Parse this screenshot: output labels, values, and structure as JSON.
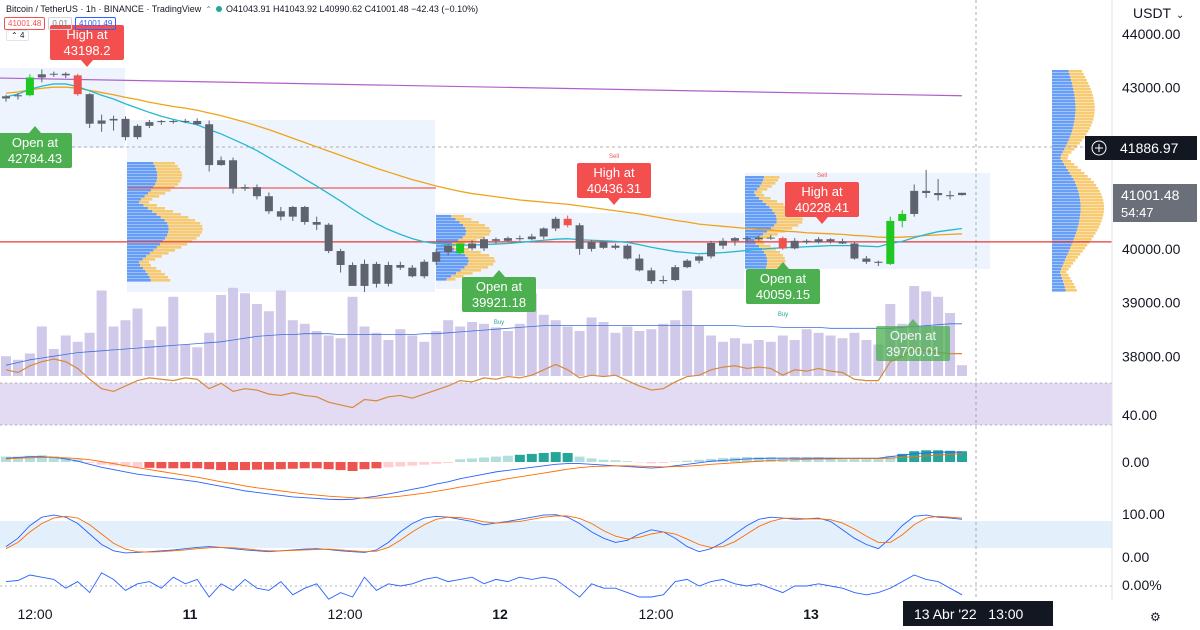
{
  "header": {
    "symbol": "Bitcoin / TetherUS · 1h · BINANCE · TradingView",
    "bid_badge": "41001.48",
    "spread_badge": "0.01",
    "ask_badge": "41001.49",
    "ohlc": "O41043.91 H41043.92 L40990.62 C41001.48 −42.43 (−0.10%)",
    "indicator_count": "4"
  },
  "price_axis": {
    "currency": "USDT",
    "current_price": "41001.48",
    "countdown": "54:47",
    "crosshair_price": "41886.97"
  },
  "time_axis": {
    "crosshair_label": "13 Abr '22   13:00"
  },
  "colors": {
    "up": "#1fc722",
    "down": "#ef5350",
    "neutral": "#787b86",
    "ema_fast": "#26b8d0",
    "ema_slow": "#f0a31a",
    "long_ma": "#b05fc9",
    "volume": "#c9bfe6",
    "rsi_line": "#d8893a"
  },
  "chart_data": {
    "type": "candlestick",
    "interval": "1h",
    "ylim": [
      37600,
      44400
    ],
    "y_ticks": [
      "44000.00",
      "43000.00",
      "42000.00",
      "41000.00",
      "40000.00",
      "39000.00",
      "38000.00"
    ],
    "x_ticks": [
      "12:00",
      "11",
      "12:00",
      "12",
      "12:00",
      "13"
    ],
    "candles": [
      [
        42800,
        42870,
        42740,
        42840
      ],
      [
        42840,
        42900,
        42780,
        42860
      ],
      [
        42860,
        43250,
        42840,
        43190
      ],
      [
        43190,
        43340,
        43100,
        43250
      ],
      [
        43250,
        43300,
        43200,
        43260
      ],
      [
        43260,
        43290,
        43180,
        43230
      ],
      [
        43230,
        43260,
        42850,
        42880
      ],
      [
        42880,
        42900,
        42250,
        42330
      ],
      [
        42330,
        42500,
        42180,
        42390
      ],
      [
        42390,
        42480,
        42200,
        42420
      ],
      [
        42420,
        42470,
        42020,
        42080
      ],
      [
        42080,
        42320,
        42040,
        42290
      ],
      [
        42290,
        42400,
        42250,
        42360
      ],
      [
        42360,
        42400,
        42310,
        42380
      ],
      [
        42380,
        42400,
        42330,
        42370
      ],
      [
        42370,
        42420,
        42340,
        42380
      ],
      [
        42380,
        42430,
        42300,
        42320
      ],
      [
        42320,
        42390,
        41440,
        41560
      ],
      [
        41560,
        41720,
        41550,
        41650
      ],
      [
        41650,
        41700,
        41030,
        41120
      ],
      [
        41120,
        41200,
        41080,
        41150
      ],
      [
        41150,
        41200,
        40920,
        40980
      ],
      [
        40980,
        41050,
        40650,
        40700
      ],
      [
        40700,
        40780,
        40530,
        40600
      ],
      [
        40600,
        40800,
        40520,
        40780
      ],
      [
        40780,
        40800,
        40450,
        40500
      ],
      [
        40500,
        40600,
        40350,
        40450
      ],
      [
        40450,
        40480,
        39920,
        39960
      ],
      [
        39960,
        40000,
        39560,
        39700
      ],
      [
        39700,
        39750,
        39320,
        39310
      ],
      [
        39310,
        39800,
        39200,
        39720
      ],
      [
        39720,
        39760,
        39280,
        39350
      ],
      [
        39350,
        39760,
        39300,
        39700
      ],
      [
        39700,
        39760,
        39610,
        39650
      ],
      [
        39650,
        39700,
        39470,
        39490
      ],
      [
        39490,
        39800,
        39450,
        39760
      ],
      [
        39760,
        40000,
        39700,
        39940
      ],
      [
        39940,
        40090,
        39880,
        40060
      ],
      [
        39920,
        40110,
        39900,
        40100
      ],
      [
        40100,
        40160,
        39970,
        40010
      ],
      [
        40010,
        40220,
        39960,
        40180
      ],
      [
        40180,
        40210,
        40100,
        40150
      ],
      [
        40150,
        40230,
        40120,
        40200
      ],
      [
        40200,
        40250,
        40150,
        40180
      ],
      [
        40180,
        40280,
        40160,
        40230
      ],
      [
        40230,
        40400,
        40180,
        40380
      ],
      [
        40380,
        40600,
        40330,
        40560
      ],
      [
        40560,
        40620,
        40400,
        40440
      ],
      [
        40440,
        40480,
        39890,
        40000
      ],
      [
        40000,
        40160,
        39950,
        40120
      ],
      [
        40120,
        40140,
        40000,
        40020
      ],
      [
        40020,
        40100,
        39990,
        40060
      ],
      [
        40060,
        40090,
        39800,
        39820
      ],
      [
        39820,
        39900,
        39580,
        39600
      ],
      [
        39600,
        39650,
        39350,
        39400
      ],
      [
        39400,
        39500,
        39350,
        39420
      ],
      [
        39420,
        39700,
        39400,
        39660
      ],
      [
        39660,
        39810,
        39640,
        39780
      ],
      [
        39780,
        39880,
        39730,
        39860
      ],
      [
        39860,
        40150,
        39820,
        40110
      ],
      [
        40060,
        40200,
        40000,
        40150
      ],
      [
        40150,
        40220,
        40060,
        40200
      ],
      [
        40200,
        40240,
        40120,
        40180
      ],
      [
        40180,
        40250,
        40150,
        40210
      ],
      [
        40210,
        40260,
        40170,
        40200
      ],
      [
        40200,
        40230,
        39980,
        40010
      ],
      [
        40010,
        40200,
        39990,
        40150
      ],
      [
        40150,
        40180,
        40090,
        40120
      ],
      [
        40120,
        40220,
        40100,
        40180
      ],
      [
        40180,
        40200,
        40100,
        40140
      ],
      [
        40140,
        40190,
        40090,
        40100
      ],
      [
        40100,
        40120,
        39800,
        39820
      ],
      [
        39820,
        39870,
        39720,
        39760
      ],
      [
        39760,
        39780,
        39680,
        39740
      ],
      [
        39720,
        40600,
        39700,
        40520
      ],
      [
        40520,
        40720,
        40400,
        40650
      ],
      [
        40650,
        41200,
        40600,
        41080
      ],
      [
        41080,
        41470,
        40950,
        41040
      ],
      [
        41040,
        41300,
        40900,
        41000
      ],
      [
        41000,
        41080,
        40920,
        40980
      ],
      [
        41043.91,
        41043.92,
        40990.62,
        41001.48
      ]
    ],
    "volume": [
      22,
      18,
      25,
      55,
      30,
      45,
      38,
      48,
      95,
      55,
      62,
      75,
      40,
      55,
      88,
      35,
      32,
      48,
      90,
      98,
      92,
      80,
      72,
      95,
      62,
      58,
      50,
      45,
      42,
      88,
      55,
      48,
      40,
      52,
      45,
      38,
      50,
      62,
      55,
      60,
      58,
      54,
      50,
      58,
      92,
      68,
      62,
      55,
      50,
      65,
      60,
      48,
      55,
      50,
      52,
      58,
      62,
      95,
      56,
      45,
      38,
      42,
      36,
      40,
      38,
      45,
      40,
      52,
      48,
      45,
      42,
      48,
      40,
      35,
      80,
      58,
      100,
      94,
      88,
      70,
      12
    ],
    "ema_fast": [
      42830,
      42880,
      42970,
      43030,
      43070,
      43070,
      43020,
      42940,
      42860,
      42790,
      42700,
      42620,
      42540,
      42470,
      42410,
      42360,
      42310,
      42220,
      42140,
      42040,
      41940,
      41830,
      41700,
      41570,
      41440,
      41300,
      41170,
      41030,
      40890,
      40740,
      40600,
      40470,
      40360,
      40270,
      40190,
      40130,
      40100,
      40080,
      40070,
      40070,
      40080,
      40090,
      40100,
      40120,
      40140,
      40160,
      40180,
      40190,
      40170,
      40160,
      40150,
      40140,
      40120,
      40080,
      40030,
      39990,
      39950,
      39930,
      39910,
      39920,
      39930,
      39950,
      39970,
      39990,
      40010,
      40020,
      40030,
      40040,
      40050,
      40060,
      40060,
      40060,
      40050,
      40040,
      40100,
      40140,
      40210,
      40270,
      40320,
      40350,
      40380
    ],
    "ema_slow": [
      42900,
      42920,
      42960,
      42990,
      43010,
      43010,
      42990,
      42950,
      42910,
      42870,
      42820,
      42780,
      42730,
      42690,
      42650,
      42620,
      42580,
      42530,
      42480,
      42420,
      42360,
      42290,
      42220,
      42140,
      42060,
      41980,
      41900,
      41820,
      41740,
      41660,
      41580,
      41500,
      41430,
      41360,
      41290,
      41230,
      41170,
      41120,
      41070,
      41030,
      41000,
      40970,
      40940,
      40910,
      40890,
      40870,
      40850,
      40830,
      40800,
      40770,
      40740,
      40710,
      40680,
      40650,
      40610,
      40570,
      40530,
      40500,
      40460,
      40440,
      40420,
      40400,
      40380,
      40360,
      40350,
      40330,
      40320,
      40300,
      40290,
      40280,
      40270,
      40250,
      40240,
      40220,
      40210,
      40220,
      40230,
      40250,
      40260,
      40270,
      40280
    ],
    "long_ma": [
      43180,
      42850
    ],
    "volume_ma": [
      12,
      15,
      18,
      20,
      22,
      24,
      26,
      27,
      28,
      29,
      30,
      31,
      32,
      33,
      34,
      35,
      36,
      37,
      38,
      40,
      42,
      44,
      45,
      46,
      46,
      47,
      47,
      47,
      46,
      46,
      46,
      46,
      46,
      46,
      46,
      47,
      47,
      48,
      49,
      50,
      51,
      52,
      53,
      54,
      55,
      56,
      56,
      56,
      56,
      56,
      56,
      56,
      56,
      56,
      56,
      56,
      56,
      56,
      56,
      56,
      56,
      56,
      55,
      55,
      55,
      54,
      54,
      54,
      54,
      53,
      53,
      53,
      53,
      53,
      53,
      54,
      55,
      56,
      57,
      58,
      58
    ],
    "horizontal_levels": [
      40130
    ],
    "annotations": [
      {
        "label": "High at 43198.2",
        "color": "red",
        "candle": 2
      },
      {
        "label": "Open at 42784.43",
        "color": "green",
        "candle": 0
      },
      {
        "label": "Open at 39921.18",
        "color": "green",
        "candle": 38,
        "sub": "Buy"
      },
      {
        "label": "High at 40436.31",
        "color": "red",
        "candle": 46,
        "sub": "Sell"
      },
      {
        "label": "High at 40228.41",
        "color": "red",
        "candle": 63,
        "sub": "Sell"
      },
      {
        "label": "Open at 40059.15",
        "color": "green",
        "candle": 60,
        "sub": "Buy"
      },
      {
        "label": "Open at 39700.01",
        "color": "green",
        "candle": 74
      }
    ],
    "rsi": {
      "axis_label": "40.00",
      "values": [
        52,
        50,
        55,
        58,
        60,
        58,
        53,
        45,
        38,
        36,
        40,
        44,
        46,
        45,
        44,
        46,
        45,
        38,
        42,
        36,
        38,
        37,
        34,
        33,
        35,
        33,
        32,
        28,
        26,
        24,
        30,
        29,
        32,
        33,
        31,
        34,
        37,
        40,
        44,
        43,
        46,
        45,
        47,
        46,
        48,
        52,
        56,
        52,
        46,
        48,
        47,
        48,
        44,
        40,
        37,
        38,
        43,
        47,
        48,
        52,
        54,
        55,
        53,
        54,
        53,
        48,
        52,
        51,
        53,
        51,
        50,
        45,
        44,
        44,
        58,
        62,
        68,
        66,
        65,
        64,
        64
      ]
    },
    "macd": {
      "axis_label": "0.00",
      "histogram": [
        12,
        12,
        14,
        15,
        13,
        10,
        6,
        -2,
        -6,
        -8,
        -10,
        -12,
        -13,
        -14,
        -14,
        -14,
        -14,
        -16,
        -18,
        -18,
        -18,
        -17,
        -17,
        -16,
        -15,
        -14,
        -14,
        -16,
        -18,
        -20,
        -16,
        -14,
        -12,
        -10,
        -8,
        -6,
        -4,
        -2,
        6,
        8,
        10,
        12,
        14,
        16,
        18,
        20,
        22,
        20,
        12,
        8,
        5,
        4,
        2,
        -1,
        -3,
        -2,
        1,
        3,
        5,
        7,
        9,
        10,
        11,
        11,
        11,
        10,
        11,
        11,
        11,
        10,
        9,
        8,
        7,
        7,
        14,
        18,
        24,
        26,
        26,
        25,
        24
      ],
      "macd_line": [
        10,
        12,
        14,
        14,
        12,
        8,
        2,
        -6,
        -14,
        -20,
        -26,
        -32,
        -36,
        -40,
        -44,
        -48,
        -52,
        -58,
        -64,
        -70,
        -76,
        -80,
        -84,
        -88,
        -92,
        -94,
        -96,
        -98,
        -99,
        -98,
        -94,
        -90,
        -84,
        -78,
        -72,
        -66,
        -58,
        -52,
        -44,
        -38,
        -32,
        -26,
        -22,
        -18,
        -14,
        -10,
        -6,
        -4,
        -4,
        -6,
        -8,
        -10,
        -12,
        -14,
        -16,
        -14,
        -10,
        -6,
        -2,
        2,
        4,
        6,
        8,
        9,
        10,
        10,
        10,
        10,
        10,
        10,
        10,
        10,
        10,
        10,
        14,
        18,
        22,
        24,
        26,
        26,
        26
      ],
      "signal_line": [
        8,
        10,
        11,
        12,
        12,
        11,
        9,
        6,
        1,
        -4,
        -10,
        -15,
        -20,
        -25,
        -30,
        -35,
        -40,
        -46,
        -52,
        -57,
        -63,
        -68,
        -72,
        -76,
        -80,
        -84,
        -87,
        -90,
        -92,
        -94,
        -95,
        -95,
        -93,
        -90,
        -86,
        -82,
        -77,
        -72,
        -66,
        -61,
        -55,
        -50,
        -44,
        -39,
        -34,
        -29,
        -24,
        -19,
        -15,
        -12,
        -11,
        -10,
        -10,
        -11,
        -12,
        -13,
        -12,
        -11,
        -9,
        -6,
        -4,
        -2,
        0,
        2,
        4,
        5,
        6,
        7,
        8,
        8,
        9,
        9,
        9,
        9,
        10,
        12,
        14,
        16,
        18,
        20,
        22
      ]
    },
    "stoch": {
      "axis_labels": [
        "100.00",
        "0.00"
      ],
      "k": [
        20,
        40,
        70,
        90,
        95,
        90,
        75,
        50,
        25,
        10,
        5,
        6,
        8,
        10,
        12,
        15,
        18,
        20,
        18,
        15,
        12,
        10,
        8,
        10,
        12,
        14,
        15,
        13,
        10,
        8,
        6,
        12,
        30,
        55,
        75,
        88,
        92,
        90,
        85,
        80,
        72,
        76,
        80,
        85,
        90,
        95,
        96,
        90,
        75,
        55,
        40,
        30,
        35,
        50,
        60,
        55,
        40,
        20,
        8,
        15,
        30,
        50,
        70,
        85,
        90,
        88,
        85,
        86,
        88,
        80,
        60,
        40,
        25,
        15,
        40,
        70,
        92,
        95,
        90,
        88,
        85
      ],
      "d": [
        15,
        30,
        55,
        75,
        88,
        92,
        88,
        72,
        50,
        28,
        14,
        8,
        7,
        8,
        10,
        12,
        15,
        17,
        18,
        17,
        15,
        12,
        10,
        10,
        11,
        12,
        13,
        14,
        12,
        10,
        8,
        9,
        18,
        35,
        55,
        72,
        85,
        90,
        89,
        85,
        79,
        76,
        78,
        80,
        85,
        90,
        93,
        93,
        87,
        75,
        58,
        45,
        38,
        42,
        50,
        55,
        50,
        38,
        25,
        18,
        20,
        32,
        50,
        68,
        80,
        87,
        88,
        86,
        86,
        84,
        76,
        62,
        45,
        30,
        30,
        48,
        72,
        88,
        92,
        90,
        88
      ]
    },
    "pct": {
      "axis_label": "0.00%",
      "values": [
        0.2,
        0.25,
        0.5,
        0.4,
        0.3,
        -0.1,
        0.2,
        -0.3,
        0.6,
        0.3,
        -0.2,
        0.1,
        0.2,
        -0.1,
        0.4,
        0.1,
        0.3,
        -0.5,
        0.1,
        -0.2,
        0.3,
        -0.1,
        -0.2,
        0.2,
        -0.4,
        -0.1,
        0.1,
        -0.6,
        -0.3,
        -0.5,
        0.4,
        -0.2,
        0.1,
        0.0,
        0.1,
        0.3,
        0.4,
        0.2,
        0.3,
        0.4,
        0.1,
        0.3,
        0.2,
        0.4,
        0.3,
        0.4,
        0.3,
        -0.1,
        -0.5,
        0.1,
        -0.1,
        -0.1,
        -0.3,
        -0.5,
        -0.5,
        -0.4,
        0.2,
        0.3,
        0.0,
        0.2,
        0.3,
        0.1,
        0.0,
        0.1,
        -0.1,
        -0.3,
        0.0,
        0.0,
        0.1,
        0.0,
        -0.1,
        -0.3,
        -0.4,
        -0.3,
        -0.1,
        0.2,
        0.5,
        0.3,
        0.2,
        -0.1,
        -0.4
      ]
    }
  }
}
